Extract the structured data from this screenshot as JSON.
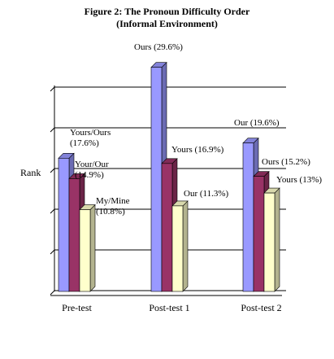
{
  "chart_data": {
    "type": "bar3d",
    "title": "Figure 2: The Pronoun Difficulty Order",
    "subtitle": "(Informal Environment)",
    "y_label": "Rank",
    "categories": [
      "Pre-test",
      "Post-test 1",
      "Post-test 2"
    ],
    "series": [
      {
        "color": "#9999ff",
        "values": [
          17.6,
          29.6,
          19.6
        ],
        "value_labels": [
          "Yours/Ours (17.6%)",
          "Ours (29.6%)",
          "Our (19.6%)"
        ]
      },
      {
        "color": "#993366",
        "values": [
          14.9,
          16.9,
          15.2
        ],
        "value_labels": [
          "Your/Our (14.9%)",
          "Yours (16.9%)",
          "Ours (15.2%)"
        ]
      },
      {
        "color": "#ffffcc",
        "values": [
          10.8,
          11.3,
          13
        ],
        "value_labels": [
          "My/Mine (10.8%)",
          "Our (11.3%)",
          "Yours (13%)"
        ]
      }
    ],
    "ylim": [
      0,
      30
    ],
    "grid": true
  }
}
